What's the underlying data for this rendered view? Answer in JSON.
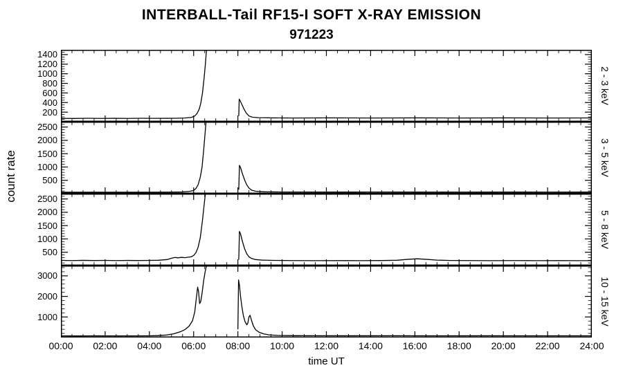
{
  "title": "INTERBALL-Tail RF15-I SOFT X-RAY EMISSION",
  "subtitle": "971223",
  "ylabel": "count rate",
  "xlabel": "time UT",
  "chart_data": {
    "type": "line",
    "title": "INTERBALL-Tail RF15-I SOFT X-RAY EMISSION",
    "subtitle": "971223",
    "ylabel": "count rate",
    "xlabel": "time UT",
    "line_color": "#000000",
    "axis_color": "#000000",
    "background_color": "#ffffff",
    "x_axis": {
      "min": 0,
      "max": 24,
      "major_hours": [
        0,
        2,
        4,
        6,
        8,
        10,
        12,
        14,
        16,
        18,
        20,
        22,
        24
      ],
      "tick_labels": [
        "00:00",
        "02:00",
        "04:00",
        "06:00",
        "08:00",
        "10:00",
        "12:00",
        "14:00",
        "16:00",
        "18:00",
        "20:00",
        "22:00",
        "24:00"
      ],
      "minor_step": 0.5
    },
    "panels": [
      {
        "right_label": "2 - 3 keV",
        "ylim": [
          0,
          1500
        ],
        "yticks": [
          200,
          400,
          600,
          800,
          1000,
          1200,
          1400
        ],
        "minor_step": 50,
        "segments": [
          [
            [
              0,
              70
            ],
            [
              0.6,
              68
            ],
            [
              1.2,
              72
            ],
            [
              1.8,
              69
            ],
            [
              2.4,
              71
            ],
            [
              3.0,
              69
            ],
            [
              3.6,
              72
            ],
            [
              4.2,
              70
            ],
            [
              4.8,
              71
            ],
            [
              5.2,
              72
            ],
            [
              5.6,
              78
            ],
            [
              5.9,
              90
            ],
            [
              6.05,
              120
            ],
            [
              6.15,
              170
            ],
            [
              6.25,
              260
            ],
            [
              6.32,
              380
            ],
            [
              6.4,
              600
            ],
            [
              6.47,
              900
            ],
            [
              6.53,
              1200
            ],
            [
              6.58,
              1500
            ]
          ],
          [
            [
              8.04,
              120
            ],
            [
              8.06,
              470
            ],
            [
              8.1,
              440
            ],
            [
              8.18,
              360
            ],
            [
              8.28,
              260
            ],
            [
              8.38,
              180
            ],
            [
              8.5,
              120
            ],
            [
              8.65,
              95
            ],
            [
              8.9,
              85
            ],
            [
              9.5,
              80
            ],
            [
              10.5,
              78
            ],
            [
              12,
              80
            ],
            [
              14,
              78
            ],
            [
              16,
              80
            ],
            [
              18,
              78
            ],
            [
              20,
              80
            ],
            [
              22,
              78
            ],
            [
              24,
              79
            ]
          ]
        ]
      },
      {
        "right_label": "3 - 5 keV",
        "ylim": [
          0,
          2700
        ],
        "yticks": [
          500,
          1000,
          1500,
          2000,
          2500
        ],
        "minor_step": 100,
        "segments": [
          [
            [
              0,
              55
            ],
            [
              1,
              53
            ],
            [
              2,
              56
            ],
            [
              3,
              54
            ],
            [
              4,
              55
            ],
            [
              5,
              58
            ],
            [
              5.5,
              65
            ],
            [
              5.8,
              85
            ],
            [
              6.0,
              120
            ],
            [
              6.1,
              190
            ],
            [
              6.2,
              330
            ],
            [
              6.3,
              620
            ],
            [
              6.38,
              1000
            ],
            [
              6.45,
              1600
            ],
            [
              6.5,
              2100
            ],
            [
              6.56,
              2700
            ]
          ],
          [
            [
              8.04,
              150
            ],
            [
              8.07,
              1060
            ],
            [
              8.12,
              980
            ],
            [
              8.2,
              760
            ],
            [
              8.3,
              520
            ],
            [
              8.4,
              330
            ],
            [
              8.5,
              210
            ],
            [
              8.62,
              130
            ],
            [
              8.8,
              90
            ],
            [
              9.2,
              70
            ],
            [
              10,
              62
            ],
            [
              12,
              60
            ],
            [
              14,
              61
            ],
            [
              16,
              60
            ],
            [
              18,
              59
            ],
            [
              20,
              60
            ],
            [
              22,
              59
            ],
            [
              24,
              60
            ]
          ]
        ]
      },
      {
        "right_label": "5 - 8 keV",
        "ylim": [
          0,
          2700
        ],
        "yticks": [
          500,
          1000,
          1500,
          2000,
          2500
        ],
        "minor_step": 100,
        "segments": [
          [
            [
              0,
              195
            ],
            [
              0.5,
              188
            ],
            [
              1,
              196
            ],
            [
              1.5,
              190
            ],
            [
              2,
              194
            ],
            [
              2.5,
              189
            ],
            [
              3,
              193
            ],
            [
              3.5,
              190
            ],
            [
              4,
              195
            ],
            [
              4.4,
              200
            ],
            [
              4.8,
              225
            ],
            [
              5.0,
              275
            ],
            [
              5.15,
              305
            ],
            [
              5.3,
              290
            ],
            [
              5.45,
              310
            ],
            [
              5.6,
              295
            ],
            [
              5.75,
              315
            ],
            [
              5.9,
              330
            ],
            [
              6.0,
              380
            ],
            [
              6.1,
              480
            ],
            [
              6.2,
              680
            ],
            [
              6.3,
              1050
            ],
            [
              6.4,
              1700
            ],
            [
              6.47,
              2250
            ],
            [
              6.53,
              2700
            ]
          ],
          [
            [
              8.04,
              220
            ],
            [
              8.07,
              1280
            ],
            [
              8.12,
              1190
            ],
            [
              8.2,
              920
            ],
            [
              8.3,
              640
            ],
            [
              8.4,
              440
            ],
            [
              8.5,
              330
            ],
            [
              8.62,
              265
            ],
            [
              8.8,
              225
            ],
            [
              9.1,
              205
            ],
            [
              9.6,
              195
            ],
            [
              10.5,
              188
            ],
            [
              11.5,
              185
            ],
            [
              12.5,
              187
            ],
            [
              13.5,
              186
            ],
            [
              14.5,
              190
            ],
            [
              15.2,
              200
            ],
            [
              15.7,
              235
            ],
            [
              16.1,
              255
            ],
            [
              16.5,
              235
            ],
            [
              17,
              205
            ],
            [
              17.6,
              192
            ],
            [
              18.5,
              188
            ],
            [
              19.5,
              186
            ],
            [
              20.5,
              188
            ],
            [
              21.5,
              185
            ],
            [
              22.5,
              187
            ],
            [
              23.3,
              185
            ],
            [
              24,
              186
            ]
          ]
        ]
      },
      {
        "right_label": "10 - 15 keV",
        "ylim": [
          0,
          3500
        ],
        "yticks": [
          1000,
          2000,
          3000
        ],
        "minor_step": 200,
        "segments": [
          [
            [
              0,
              80
            ],
            [
              0.8,
              78
            ],
            [
              1.6,
              82
            ],
            [
              2.4,
              79
            ],
            [
              3.2,
              81
            ],
            [
              4.0,
              85
            ],
            [
              4.4,
              95
            ],
            [
              4.8,
              125
            ],
            [
              5.1,
              180
            ],
            [
              5.4,
              280
            ],
            [
              5.6,
              380
            ],
            [
              5.8,
              560
            ],
            [
              5.95,
              820
            ],
            [
              6.05,
              1250
            ],
            [
              6.12,
              1900
            ],
            [
              6.18,
              2450
            ],
            [
              6.22,
              2250
            ],
            [
              6.27,
              1650
            ],
            [
              6.32,
              1750
            ],
            [
              6.38,
              2150
            ],
            [
              6.45,
              2750
            ],
            [
              6.52,
              3200
            ],
            [
              6.58,
              3500
            ]
          ],
          [
            [
              8.0,
              400
            ],
            [
              8.03,
              2800
            ],
            [
              8.07,
              2550
            ],
            [
              8.12,
              2000
            ],
            [
              8.18,
              1500
            ],
            [
              8.25,
              1050
            ],
            [
              8.32,
              780
            ],
            [
              8.4,
              620
            ],
            [
              8.45,
              700
            ],
            [
              8.5,
              1000
            ],
            [
              8.55,
              1080
            ],
            [
              8.62,
              820
            ],
            [
              8.7,
              560
            ],
            [
              8.8,
              380
            ],
            [
              8.95,
              260
            ],
            [
              9.15,
              180
            ],
            [
              9.4,
              130
            ],
            [
              9.8,
              100
            ],
            [
              10.5,
              90
            ],
            [
              11.5,
              88
            ],
            [
              13,
              86
            ],
            [
              15,
              88
            ],
            [
              17,
              85
            ],
            [
              19,
              86
            ],
            [
              21,
              84
            ],
            [
              23,
              85
            ],
            [
              24,
              85
            ]
          ]
        ]
      }
    ]
  }
}
